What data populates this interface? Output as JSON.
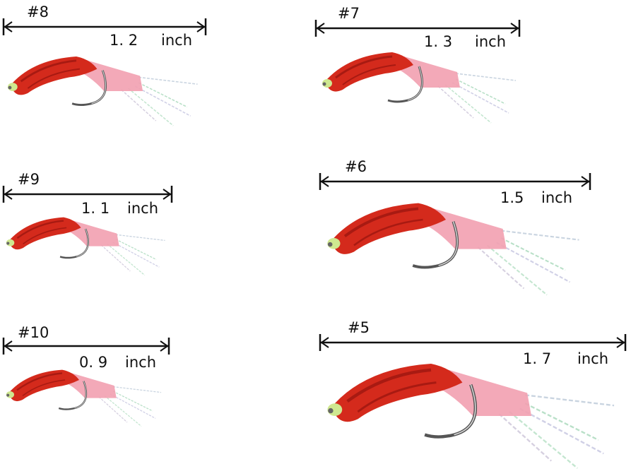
{
  "items": [
    {
      "size": "#8",
      "length": "1. 2",
      "unit": "inch"
    },
    {
      "size": "#7",
      "length": "1. 3",
      "unit": "inch"
    },
    {
      "size": "#9",
      "length": "1. 1",
      "unit": "inch"
    },
    {
      "size": "#6",
      "length": "1.5",
      "unit": "inch"
    },
    {
      "size": "#10",
      "length": "0. 9",
      "unit": "inch"
    },
    {
      "size": "#5",
      "length": "1. 7",
      "unit": "inch"
    }
  ]
}
